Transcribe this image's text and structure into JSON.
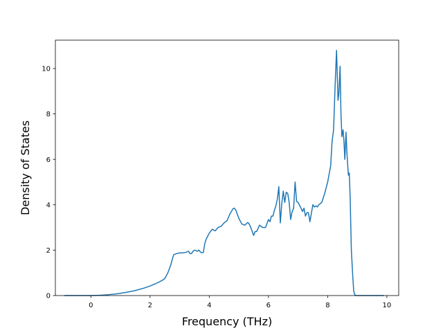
{
  "chart_data": {
    "type": "line",
    "title": "",
    "xlabel": "Frequency (THz)",
    "ylabel": "Density of States",
    "xlim": [
      -1.2,
      10.4
    ],
    "ylim": [
      0,
      11.25
    ],
    "xticks": [
      0,
      2,
      4,
      6,
      8,
      10
    ],
    "yticks": [
      0,
      2,
      4,
      6,
      8,
      10
    ],
    "grid": false,
    "legend": "none",
    "line_color": "#1f77b4",
    "series": [
      {
        "x": [
          -0.9,
          -0.5,
          0.0,
          0.3,
          0.6,
          0.9,
          1.2,
          1.5,
          1.8,
          2.0,
          2.2,
          2.4,
          2.5,
          2.6,
          2.7,
          2.75,
          2.8,
          2.9,
          3.0,
          3.1,
          3.2,
          3.3,
          3.35,
          3.4,
          3.45,
          3.5,
          3.55,
          3.6,
          3.65,
          3.7,
          3.75,
          3.8,
          3.85,
          3.9,
          4.0,
          4.1,
          4.2,
          4.3,
          4.4,
          4.5,
          4.6,
          4.7,
          4.8,
          4.85,
          4.9,
          5.0,
          5.1,
          5.2,
          5.3,
          5.35,
          5.4,
          5.5,
          5.55,
          5.6,
          5.7,
          5.8,
          5.9,
          6.0,
          6.05,
          6.1,
          6.15,
          6.2,
          6.25,
          6.3,
          6.35,
          6.4,
          6.45,
          6.5,
          6.55,
          6.6,
          6.65,
          6.7,
          6.75,
          6.8,
          6.85,
          6.9,
          6.95,
          7.0,
          7.1,
          7.15,
          7.2,
          7.25,
          7.3,
          7.35,
          7.4,
          7.5,
          7.55,
          7.6,
          7.65,
          7.7,
          7.8,
          7.9,
          8.0,
          8.1,
          8.15,
          8.2,
          8.25,
          8.3,
          8.35,
          8.38,
          8.42,
          8.45,
          8.48,
          8.52,
          8.55,
          8.58,
          8.62,
          8.65,
          8.7,
          8.73,
          8.76,
          8.8,
          8.85,
          8.88,
          8.92,
          8.96,
          9.0,
          9.5,
          9.9
        ],
        "y": [
          0,
          0,
          0,
          0.01,
          0.04,
          0.08,
          0.14,
          0.22,
          0.33,
          0.42,
          0.53,
          0.66,
          0.75,
          1.0,
          1.35,
          1.6,
          1.8,
          1.85,
          1.88,
          1.88,
          1.9,
          1.95,
          1.85,
          1.85,
          1.95,
          2.0,
          1.98,
          1.95,
          2.0,
          1.92,
          1.88,
          1.9,
          2.3,
          2.5,
          2.75,
          2.92,
          2.85,
          3.0,
          3.05,
          3.2,
          3.3,
          3.6,
          3.82,
          3.85,
          3.75,
          3.4,
          3.15,
          3.1,
          3.22,
          3.15,
          3.0,
          2.65,
          2.82,
          2.82,
          3.1,
          3.0,
          3.0,
          3.35,
          3.25,
          3.5,
          3.5,
          3.75,
          3.95,
          4.25,
          4.8,
          3.2,
          4.05,
          4.6,
          4.1,
          4.55,
          4.5,
          4.1,
          3.35,
          3.7,
          3.85,
          5.0,
          4.15,
          4.1,
          3.85,
          3.7,
          3.85,
          3.5,
          3.65,
          3.65,
          3.25,
          4.0,
          3.9,
          3.95,
          3.9,
          4.0,
          4.1,
          4.5,
          5.0,
          5.7,
          6.8,
          7.3,
          9.2,
          10.8,
          8.6,
          8.9,
          10.1,
          8.0,
          7.0,
          7.3,
          6.8,
          6.0,
          7.2,
          6.3,
          5.3,
          5.4,
          4.3,
          2.0,
          0.8,
          0.2,
          0.02,
          0,
          0,
          0,
          0
        ]
      }
    ]
  }
}
